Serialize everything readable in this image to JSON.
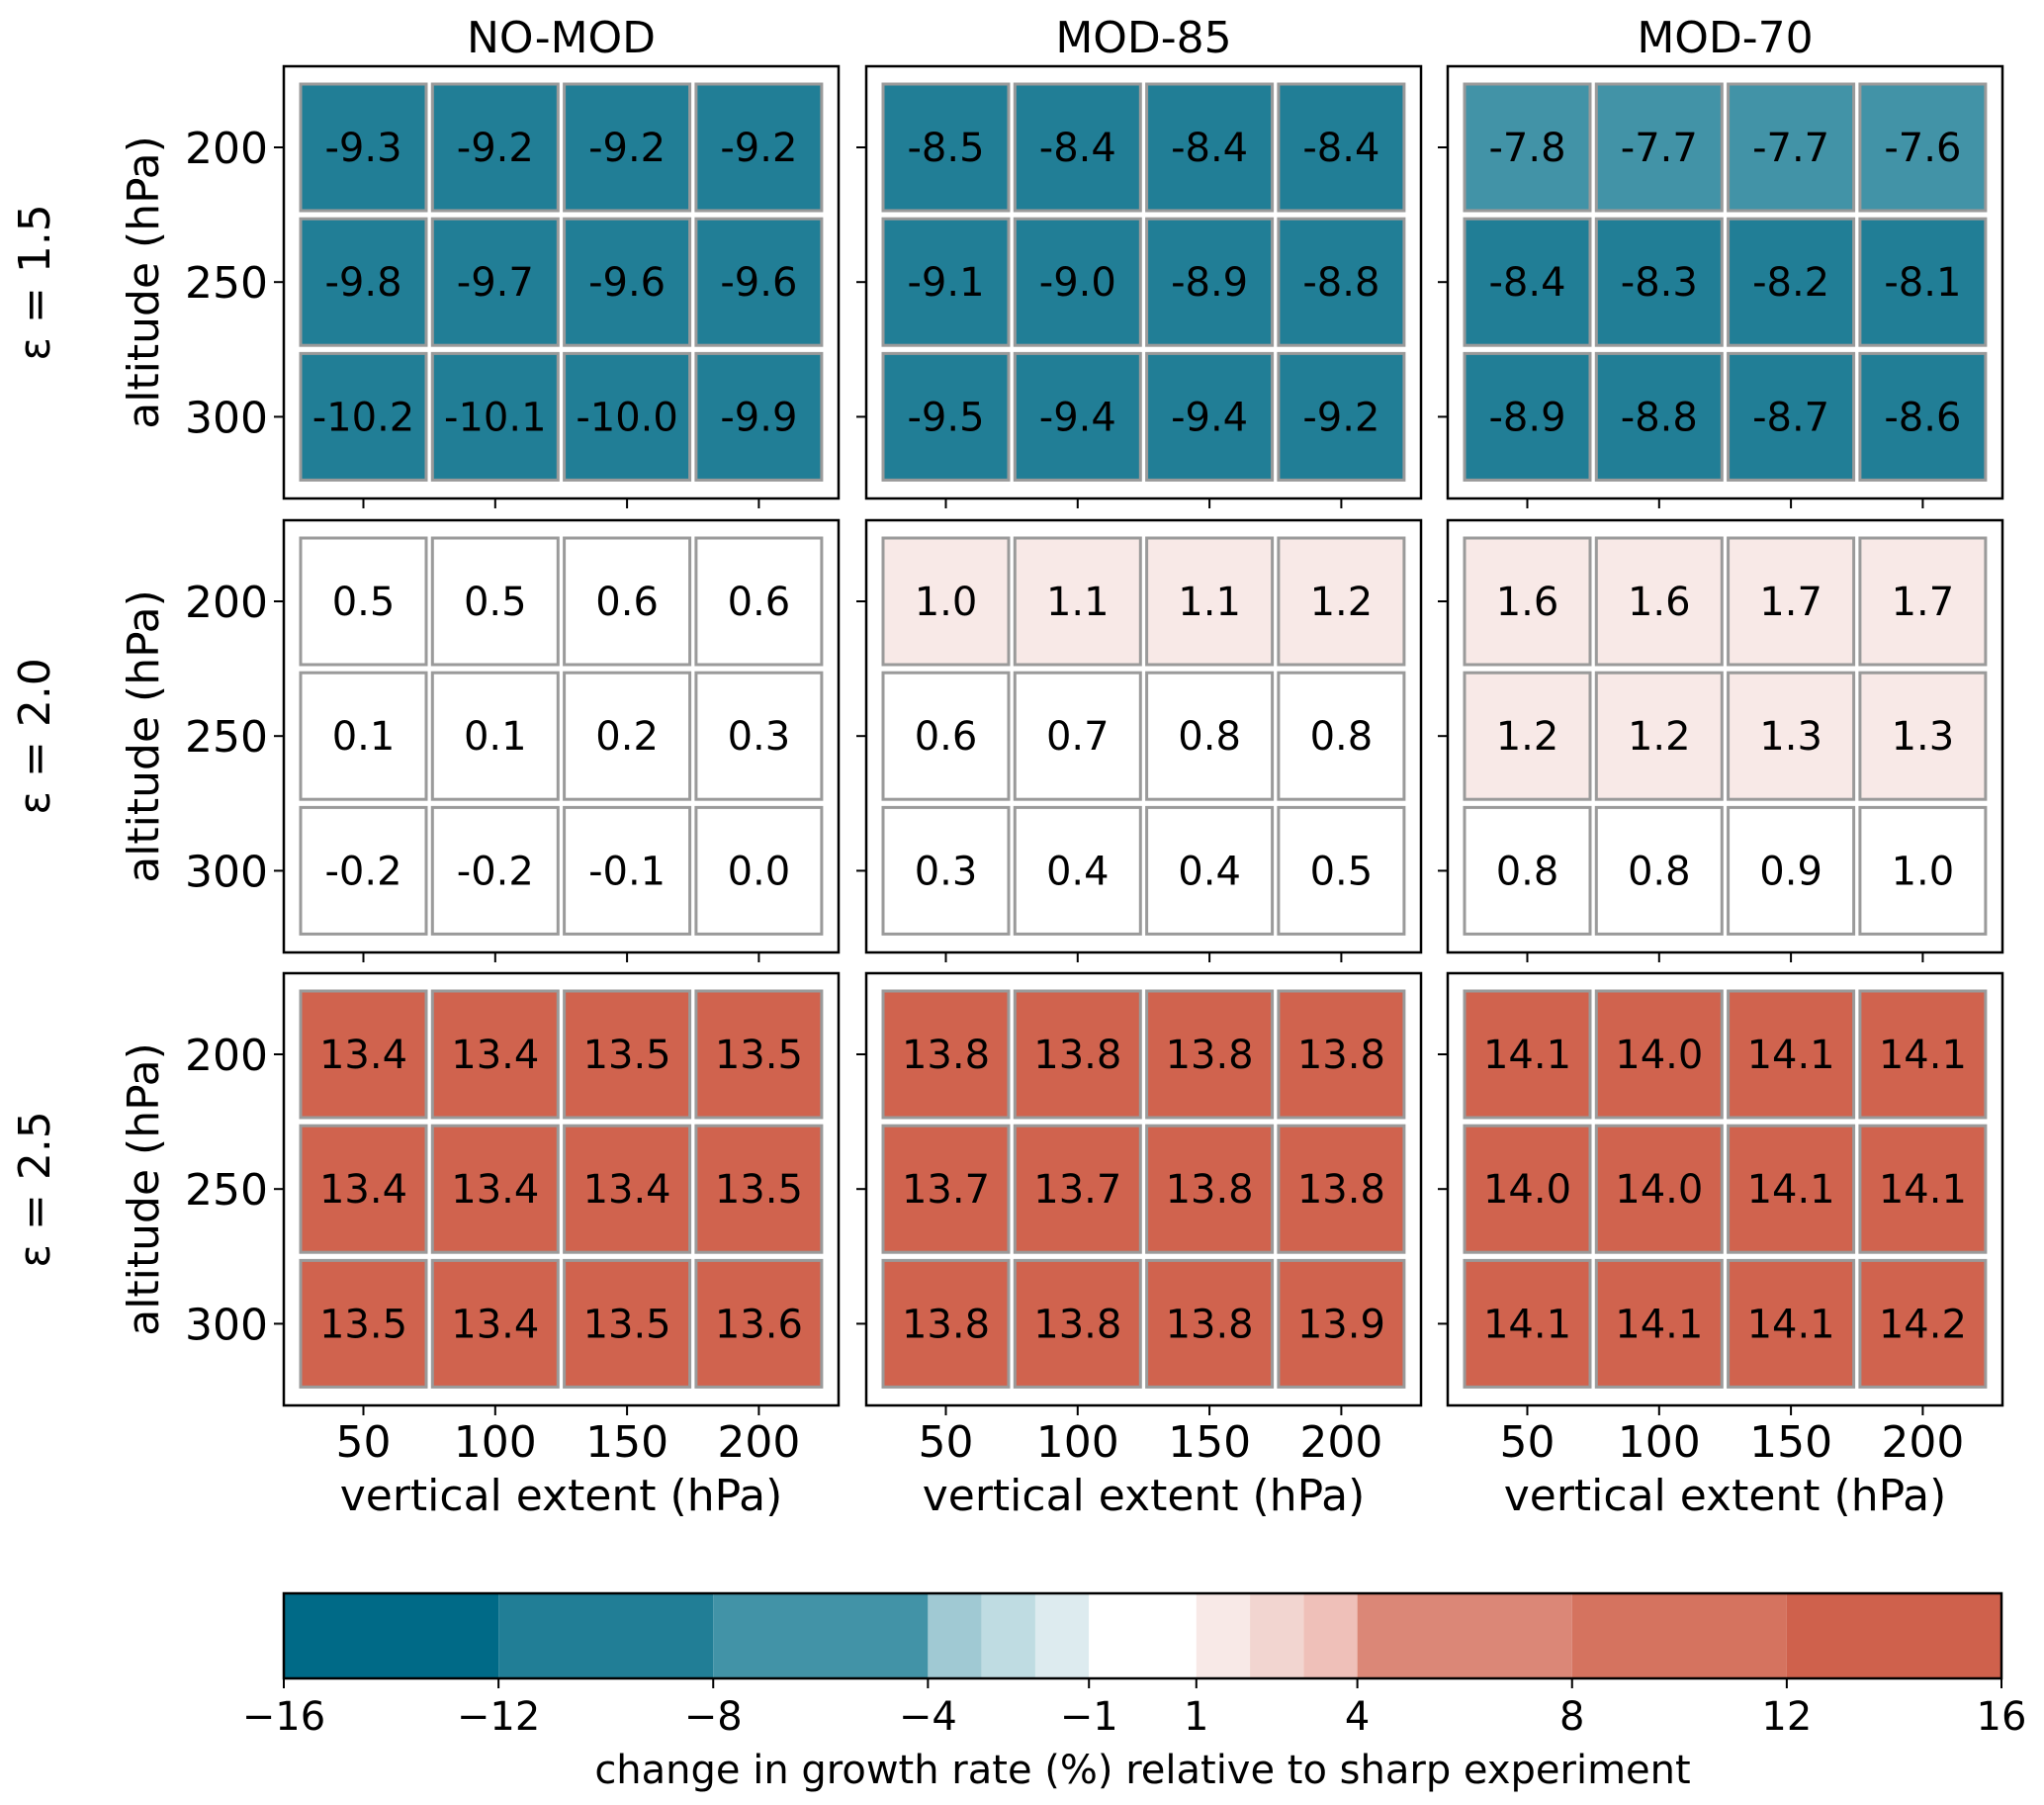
{
  "chart_data": {
    "type": "heatmap",
    "title": "",
    "columns_panels": [
      "NO-MOD",
      "MOD-85",
      "MOD-70"
    ],
    "rows_panels": [
      "ε = 1.5",
      "ε = 2.0",
      "ε = 2.5"
    ],
    "xlabel": "vertical extent (hPa)",
    "ylabel": "altitude (hPa)",
    "x_ticks": [
      50,
      100,
      150,
      200
    ],
    "y_ticks": [
      200,
      250,
      300
    ],
    "panels": [
      {
        "row": "ε = 1.5",
        "column": "NO-MOD",
        "values": [
          [
            -9.3,
            -9.2,
            -9.2,
            -9.2
          ],
          [
            -9.8,
            -9.7,
            -9.6,
            -9.6
          ],
          [
            -10.2,
            -10.1,
            -10.0,
            -9.9
          ]
        ],
        "labels": [
          [
            "-9.3",
            "-9.2",
            "-9.2",
            "-9.2"
          ],
          [
            "-9.8",
            "-9.7",
            "-9.6",
            "-9.6"
          ],
          [
            "-10.2",
            "-10.1",
            "-10.0",
            "-9.9"
          ]
        ],
        "fills": [
          [
            "#217E96",
            "#217E96",
            "#217E96",
            "#217E96"
          ],
          [
            "#217E96",
            "#217E96",
            "#217E96",
            "#217E96"
          ],
          [
            "#217E96",
            "#217E96",
            "#217E96",
            "#217E96"
          ]
        ]
      },
      {
        "row": "ε = 1.5",
        "column": "MOD-85",
        "values": [
          [
            -8.5,
            -8.4,
            -8.4,
            -8.4
          ],
          [
            -9.1,
            -9.0,
            -8.9,
            -8.8
          ],
          [
            -9.5,
            -9.4,
            -9.4,
            -9.2
          ]
        ],
        "labels": [
          [
            "-8.5",
            "-8.4",
            "-8.4",
            "-8.4"
          ],
          [
            "-9.1",
            "-9.0",
            "-8.9",
            "-8.8"
          ],
          [
            "-9.5",
            "-9.4",
            "-9.4",
            "-9.2"
          ]
        ],
        "fills": [
          [
            "#217E96",
            "#217E96",
            "#217E96",
            "#217E96"
          ],
          [
            "#217E96",
            "#217E96",
            "#217E96",
            "#217E96"
          ],
          [
            "#217E96",
            "#217E96",
            "#217E96",
            "#217E96"
          ]
        ]
      },
      {
        "row": "ε = 1.5",
        "column": "MOD-70",
        "values": [
          [
            -7.8,
            -7.7,
            -7.7,
            -7.6
          ],
          [
            -8.4,
            -8.3,
            -8.2,
            -8.1
          ],
          [
            -8.9,
            -8.8,
            -8.7,
            -8.6
          ]
        ],
        "labels": [
          [
            "-7.8",
            "-7.7",
            "-7.7",
            "-7.6"
          ],
          [
            "-8.4",
            "-8.3",
            "-8.2",
            "-8.1"
          ],
          [
            "-8.9",
            "-8.8",
            "-8.7",
            "-8.6"
          ]
        ],
        "fills": [
          [
            "#4293A7",
            "#4293A7",
            "#4293A7",
            "#4293A7"
          ],
          [
            "#217E96",
            "#217E96",
            "#217E96",
            "#217E96"
          ],
          [
            "#217E96",
            "#217E96",
            "#217E96",
            "#217E96"
          ]
        ]
      },
      {
        "row": "ε = 2.0",
        "column": "NO-MOD",
        "values": [
          [
            0.5,
            0.5,
            0.6,
            0.6
          ],
          [
            0.1,
            0.1,
            0.2,
            0.3
          ],
          [
            -0.2,
            -0.2,
            -0.1,
            0.0
          ]
        ],
        "labels": [
          [
            "0.5",
            "0.5",
            "0.6",
            "0.6"
          ],
          [
            "0.1",
            "0.1",
            "0.2",
            "0.3"
          ],
          [
            "-0.2",
            "-0.2",
            "-0.1",
            "0.0"
          ]
        ],
        "fills": [
          [
            "#FFFFFF",
            "#FFFFFF",
            "#FFFFFF",
            "#FFFFFF"
          ],
          [
            "#FFFFFF",
            "#FFFFFF",
            "#FFFFFF",
            "#FFFFFF"
          ],
          [
            "#FFFFFF",
            "#FFFFFF",
            "#FFFFFF",
            "#FFFFFF"
          ]
        ]
      },
      {
        "row": "ε = 2.0",
        "column": "MOD-85",
        "values": [
          [
            1.0,
            1.1,
            1.1,
            1.2
          ],
          [
            0.6,
            0.7,
            0.8,
            0.8
          ],
          [
            0.3,
            0.4,
            0.4,
            0.5
          ]
        ],
        "labels": [
          [
            "1.0",
            "1.1",
            "1.1",
            "1.2"
          ],
          [
            "0.6",
            "0.7",
            "0.8",
            "0.8"
          ],
          [
            "0.3",
            "0.4",
            "0.4",
            "0.5"
          ]
        ],
        "fills": [
          [
            "#F8E9E7",
            "#F8E9E7",
            "#F8E9E7",
            "#F8E9E7"
          ],
          [
            "#FFFFFF",
            "#FFFFFF",
            "#FFFFFF",
            "#FFFFFF"
          ],
          [
            "#FFFFFF",
            "#FFFFFF",
            "#FFFFFF",
            "#FFFFFF"
          ]
        ]
      },
      {
        "row": "ε = 2.0",
        "column": "MOD-70",
        "values": [
          [
            1.6,
            1.6,
            1.7,
            1.7
          ],
          [
            1.2,
            1.2,
            1.3,
            1.3
          ],
          [
            0.8,
            0.8,
            0.9,
            1.0
          ]
        ],
        "labels": [
          [
            "1.6",
            "1.6",
            "1.7",
            "1.7"
          ],
          [
            "1.2",
            "1.2",
            "1.3",
            "1.3"
          ],
          [
            "0.8",
            "0.8",
            "0.9",
            "1.0"
          ]
        ],
        "fills": [
          [
            "#F8E9E7",
            "#F8E9E7",
            "#F8E9E7",
            "#F8E9E7"
          ],
          [
            "#F8E9E7",
            "#F8E9E7",
            "#F8E9E7",
            "#F8E9E7"
          ],
          [
            "#FFFFFF",
            "#FFFFFF",
            "#FFFFFF",
            "#FFFFFF"
          ]
        ]
      },
      {
        "row": "ε = 2.5",
        "column": "NO-MOD",
        "values": [
          [
            13.4,
            13.4,
            13.5,
            13.5
          ],
          [
            13.4,
            13.4,
            13.4,
            13.5
          ],
          [
            13.5,
            13.4,
            13.5,
            13.6
          ]
        ],
        "labels": [
          [
            "13.4",
            "13.4",
            "13.5",
            "13.5"
          ],
          [
            "13.4",
            "13.4",
            "13.4",
            "13.5"
          ],
          [
            "13.5",
            "13.4",
            "13.5",
            "13.6"
          ]
        ],
        "fills": [
          [
            "#D0634E",
            "#D0634E",
            "#D0634E",
            "#D0634E"
          ],
          [
            "#D0634E",
            "#D0634E",
            "#D0634E",
            "#D0634E"
          ],
          [
            "#D0634E",
            "#D0634E",
            "#D0634E",
            "#D0634E"
          ]
        ]
      },
      {
        "row": "ε = 2.5",
        "column": "MOD-85",
        "values": [
          [
            13.8,
            13.8,
            13.8,
            13.8
          ],
          [
            13.7,
            13.7,
            13.8,
            13.8
          ],
          [
            13.8,
            13.8,
            13.8,
            13.9
          ]
        ],
        "labels": [
          [
            "13.8",
            "13.8",
            "13.8",
            "13.8"
          ],
          [
            "13.7",
            "13.7",
            "13.8",
            "13.8"
          ],
          [
            "13.8",
            "13.8",
            "13.8",
            "13.9"
          ]
        ],
        "fills": [
          [
            "#D0634E",
            "#D0634E",
            "#D0634E",
            "#D0634E"
          ],
          [
            "#D0634E",
            "#D0634E",
            "#D0634E",
            "#D0634E"
          ],
          [
            "#D0634E",
            "#D0634E",
            "#D0634E",
            "#D0634E"
          ]
        ]
      },
      {
        "row": "ε = 2.5",
        "column": "MOD-70",
        "values": [
          [
            14.1,
            14.0,
            14.1,
            14.1
          ],
          [
            14.0,
            14.0,
            14.1,
            14.1
          ],
          [
            14.1,
            14.1,
            14.1,
            14.2
          ]
        ],
        "labels": [
          [
            "14.1",
            "14.0",
            "14.1",
            "14.1"
          ],
          [
            "14.0",
            "14.0",
            "14.1",
            "14.1"
          ],
          [
            "14.1",
            "14.1",
            "14.1",
            "14.2"
          ]
        ],
        "fills": [
          [
            "#D0634E",
            "#D0634E",
            "#D0634E",
            "#D0634E"
          ],
          [
            "#D0634E",
            "#D0634E",
            "#D0634E",
            "#D0634E"
          ],
          [
            "#D0634E",
            "#D0634E",
            "#D0634E",
            "#D0634E"
          ]
        ]
      }
    ],
    "colorbar": {
      "label": "change in growth rate (%) relative to sharp experiment",
      "range": [
        -16,
        16
      ],
      "orientation": "horizontal",
      "placement": "bottom",
      "ticks": [
        -16,
        -12,
        -8,
        -4,
        -1,
        1,
        4,
        8,
        12,
        16
      ],
      "tick_labels": [
        "−16",
        "−12",
        "−8",
        "−4",
        "−1",
        "1",
        "4",
        "8",
        "12",
        "16"
      ],
      "bins": [
        {
          "from": -16,
          "to": -12,
          "color": "#006A87"
        },
        {
          "from": -12,
          "to": -8,
          "color": "#217E96"
        },
        {
          "from": -8,
          "to": -4,
          "color": "#4293A7"
        },
        {
          "from": -4,
          "to": -3,
          "color": "#A0C9D3"
        },
        {
          "from": -3,
          "to": -2,
          "color": "#BFDCE2"
        },
        {
          "from": -2,
          "to": -1,
          "color": "#DDEBEF"
        },
        {
          "from": -1,
          "to": 1,
          "color": "#FFFFFF"
        },
        {
          "from": 1,
          "to": 2,
          "color": "#F8E9E7"
        },
        {
          "from": 2,
          "to": 3,
          "color": "#F2D5D0"
        },
        {
          "from": 3,
          "to": 4,
          "color": "#EFC0B9"
        },
        {
          "from": 4,
          "to": 8,
          "color": "#DB8777"
        },
        {
          "from": 8,
          "to": 12,
          "color": "#D5735F"
        },
        {
          "from": 12,
          "to": 16,
          "color": "#CF614C"
        }
      ]
    },
    "grid": false
  }
}
